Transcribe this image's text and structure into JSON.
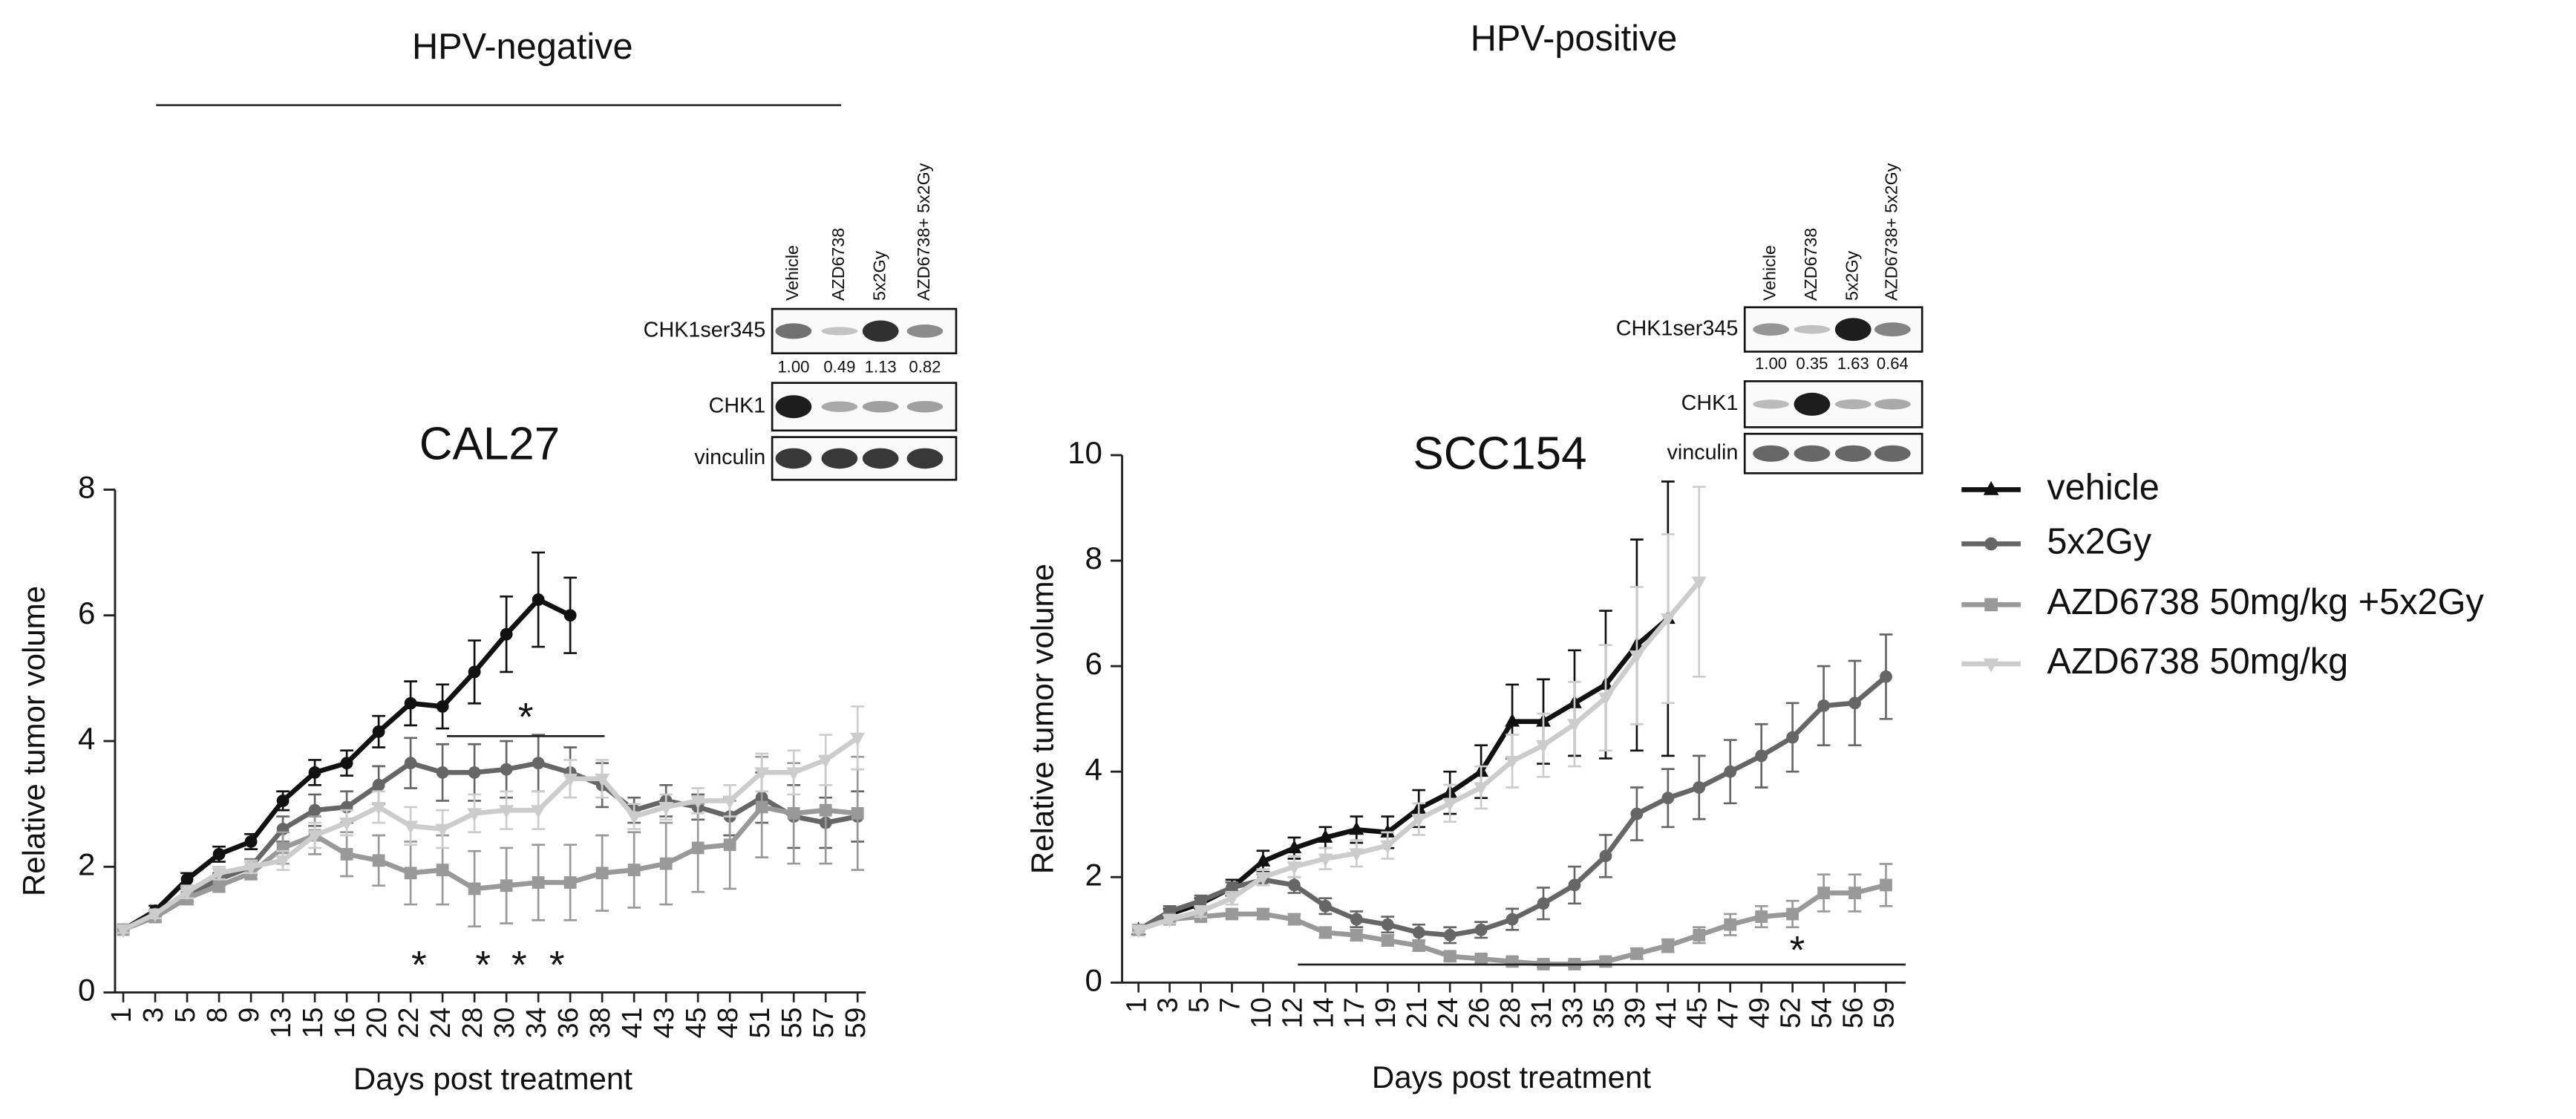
{
  "headings": [
    "HPV-negative",
    "HPV-positive"
  ],
  "blots": [
    {
      "lanes": [
        "Vehicle",
        "AZD6738",
        "5x2Gy",
        "AZD6738+ 5x2Gy"
      ],
      "rows": [
        "CHK1ser345",
        "CHK1",
        "vinculin"
      ],
      "quantification": [
        "1.00",
        "0.49",
        "1.13",
        "0.82"
      ]
    },
    {
      "lanes": [
        "Vehicle",
        "AZD6738",
        "5x2Gy",
        "AZD6738+ 5x2Gy"
      ],
      "rows": [
        "CHK1ser345",
        "CHK1",
        "vinculin"
      ],
      "quantification": [
        "1.00",
        "0.35",
        "1.63",
        "0.64"
      ]
    }
  ],
  "chart_data": [
    {
      "type": "line",
      "title": "CAL27",
      "xlabel": "Days post treatment",
      "ylabel": "Relative tumor volume",
      "categories": [
        1,
        3,
        5,
        8,
        9,
        13,
        15,
        16,
        20,
        22,
        24,
        28,
        30,
        34,
        36,
        38,
        41,
        43,
        45,
        48,
        51,
        55,
        57,
        59
      ],
      "ylim": [
        0,
        8
      ],
      "yticks": [
        0,
        2,
        4,
        6,
        8
      ],
      "annotations": [
        "*",
        "*",
        "*",
        "*",
        "*"
      ],
      "series": [
        {
          "color": "#111111",
          "marker": "circle",
          "values": [
            1,
            1.3,
            1.8,
            2.2,
            2.4,
            3.05,
            3.5,
            3.65,
            4.15,
            4.6,
            4.55,
            5.1,
            5.7,
            6.25,
            6.0,
            null,
            null,
            null,
            null,
            null,
            null,
            null,
            null,
            null
          ],
          "errors": [
            0.05,
            0.08,
            0.1,
            0.12,
            0.12,
            0.15,
            0.2,
            0.2,
            0.25,
            0.35,
            0.35,
            0.5,
            0.6,
            0.75,
            0.6,
            null,
            null,
            null,
            null,
            null,
            null,
            null,
            null,
            null
          ]
        },
        {
          "color": "#666666",
          "marker": "circle",
          "values": [
            1,
            1.25,
            1.55,
            1.8,
            2.0,
            2.6,
            2.9,
            2.95,
            3.3,
            3.65,
            3.5,
            3.5,
            3.55,
            3.65,
            3.5,
            3.3,
            2.9,
            3.05,
            2.95,
            2.8,
            3.1,
            2.8,
            2.7,
            2.8
          ],
          "errors": [
            0.05,
            0.07,
            0.1,
            0.1,
            0.12,
            0.2,
            0.25,
            0.25,
            0.3,
            0.4,
            0.45,
            0.45,
            0.45,
            0.45,
            0.4,
            0.35,
            0.2,
            0.25,
            0.2,
            0.3,
            0.4,
            0.5,
            0.4,
            0.4
          ]
        },
        {
          "color": "#999999",
          "marker": "square",
          "values": [
            1,
            1.2,
            1.5,
            1.7,
            1.9,
            2.3,
            2.5,
            2.2,
            2.1,
            1.9,
            1.95,
            1.65,
            1.7,
            1.75,
            1.75,
            1.9,
            1.95,
            2.05,
            2.3,
            2.35,
            2.95,
            2.85,
            2.9,
            2.85
          ],
          "errors": [
            0.05,
            0.07,
            0.1,
            0.1,
            0.1,
            0.25,
            0.3,
            0.35,
            0.4,
            0.5,
            0.55,
            0.6,
            0.6,
            0.6,
            0.6,
            0.6,
            0.6,
            0.65,
            0.7,
            0.7,
            0.8,
            0.8,
            0.85,
            0.9
          ]
        },
        {
          "color": "#cccccc",
          "marker": "triangle-down",
          "values": [
            1,
            1.25,
            1.6,
            1.9,
            2.0,
            2.1,
            2.5,
            2.7,
            2.95,
            2.65,
            2.6,
            2.85,
            2.9,
            2.9,
            3.4,
            3.4,
            2.8,
            2.95,
            3.05,
            3.05,
            3.5,
            3.5,
            3.7,
            4.05
          ],
          "errors": [
            0.05,
            0.07,
            0.1,
            0.1,
            0.1,
            0.15,
            0.2,
            0.2,
            0.25,
            0.3,
            0.3,
            0.3,
            0.3,
            0.3,
            0.3,
            0.3,
            0.2,
            0.2,
            0.2,
            0.25,
            0.3,
            0.35,
            0.4,
            0.5
          ]
        }
      ]
    },
    {
      "type": "line",
      "title": "SCC154",
      "xlabel": "Days post treatment",
      "ylabel": "Relative tumor volume",
      "categories": [
        1,
        3,
        5,
        7,
        10,
        12,
        14,
        17,
        19,
        21,
        24,
        26,
        28,
        31,
        33,
        35,
        39,
        41,
        45,
        47,
        49,
        52,
        54,
        56,
        59
      ],
      "ylim": [
        0,
        10
      ],
      "yticks": [
        0,
        2,
        4,
        6,
        8,
        10
      ],
      "annotations": [
        "*"
      ],
      "series": [
        {
          "name": "vehicle",
          "color": "#111111",
          "marker": "triangle",
          "values": [
            1,
            1.3,
            1.5,
            1.8,
            2.3,
            2.55,
            2.75,
            2.9,
            2.85,
            3.3,
            3.6,
            4.0,
            4.95,
            4.95,
            5.3,
            5.65,
            6.4,
            6.9,
            null,
            null,
            null,
            null,
            null,
            null,
            null
          ],
          "errors": [
            0.05,
            0.1,
            0.1,
            0.15,
            0.2,
            0.2,
            0.2,
            0.25,
            0.3,
            0.35,
            0.4,
            0.5,
            0.7,
            0.8,
            1.0,
            1.4,
            2.0,
            2.6,
            null,
            null,
            null,
            null,
            null,
            null,
            null
          ]
        },
        {
          "name": "5x2Gy",
          "color": "#666666",
          "marker": "circle",
          "values": [
            1,
            1.35,
            1.55,
            1.8,
            1.95,
            1.85,
            1.45,
            1.2,
            1.1,
            0.95,
            0.9,
            1.0,
            1.2,
            1.5,
            1.85,
            2.4,
            3.2,
            3.5,
            3.7,
            4.0,
            4.3,
            4.65,
            5.25,
            5.3,
            5.8
          ],
          "errors": [
            0.05,
            0.1,
            0.1,
            0.1,
            0.1,
            0.15,
            0.15,
            0.15,
            0.15,
            0.15,
            0.15,
            0.15,
            0.2,
            0.3,
            0.35,
            0.4,
            0.5,
            0.55,
            0.6,
            0.6,
            0.6,
            0.65,
            0.75,
            0.8,
            0.8
          ]
        },
        {
          "name": "AZD6738 50mg/kg +5x2Gy",
          "color": "#999999",
          "marker": "square",
          "values": [
            1,
            1.2,
            1.25,
            1.3,
            1.3,
            1.2,
            0.95,
            0.9,
            0.8,
            0.7,
            0.5,
            0.45,
            0.4,
            0.35,
            0.35,
            0.4,
            0.55,
            0.7,
            0.9,
            1.1,
            1.25,
            1.3,
            1.7,
            1.7,
            1.85
          ],
          "errors": [
            0.05,
            0.05,
            0.08,
            0.08,
            0.1,
            0.1,
            0.1,
            0.1,
            0.1,
            0.1,
            0.08,
            0.08,
            0.08,
            0.06,
            0.06,
            0.08,
            0.1,
            0.12,
            0.15,
            0.2,
            0.2,
            0.25,
            0.35,
            0.35,
            0.4
          ]
        },
        {
          "name": "AZD6738 50mg/kg",
          "color": "#cccccc",
          "marker": "triangle-down",
          "values": [
            1,
            1.2,
            1.35,
            1.6,
            2.0,
            2.2,
            2.35,
            2.45,
            2.6,
            3.1,
            3.4,
            3.7,
            4.2,
            4.5,
            4.9,
            5.4,
            6.2,
            6.9,
            7.6,
            null,
            null,
            null,
            null,
            null,
            null
          ],
          "errors": [
            0.05,
            0.08,
            0.1,
            0.12,
            0.15,
            0.2,
            0.2,
            0.25,
            0.25,
            0.3,
            0.35,
            0.4,
            0.5,
            0.6,
            0.8,
            1.0,
            1.3,
            1.6,
            1.8,
            null,
            null,
            null,
            null,
            null,
            null
          ]
        }
      ]
    }
  ]
}
